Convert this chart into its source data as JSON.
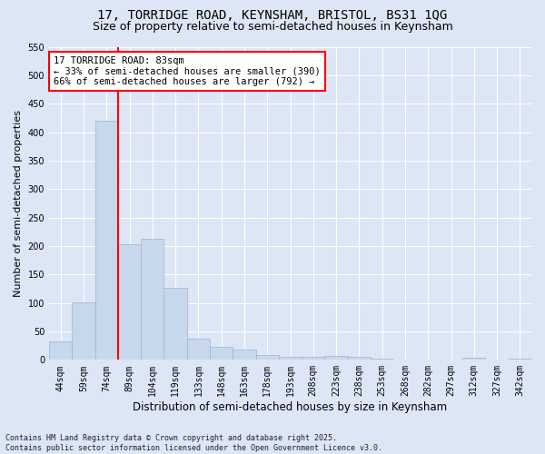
{
  "title_line1": "17, TORRIDGE ROAD, KEYNSHAM, BRISTOL, BS31 1QG",
  "title_line2": "Size of property relative to semi-detached houses in Keynsham",
  "xlabel": "Distribution of semi-detached houses by size in Keynsham",
  "ylabel": "Number of semi-detached properties",
  "categories": [
    "44sqm",
    "59sqm",
    "74sqm",
    "89sqm",
    "104sqm",
    "119sqm",
    "133sqm",
    "148sqm",
    "163sqm",
    "178sqm",
    "193sqm",
    "208sqm",
    "223sqm",
    "238sqm",
    "253sqm",
    "268sqm",
    "282sqm",
    "297sqm",
    "312sqm",
    "327sqm",
    "342sqm"
  ],
  "values": [
    33,
    101,
    420,
    203,
    213,
    127,
    38,
    23,
    18,
    9,
    5,
    6,
    7,
    5,
    2,
    0,
    1,
    0,
    3,
    0,
    2
  ],
  "bar_color": "#c8d8ec",
  "bar_edge_color": "#9ab4d4",
  "vline_x_idx": 2.5,
  "vline_color": "red",
  "annotation_text": "17 TORRIDGE ROAD: 83sqm\n← 33% of semi-detached houses are smaller (390)\n66% of semi-detached houses are larger (792) →",
  "annotation_box_facecolor": "white",
  "annotation_box_edgecolor": "red",
  "ylim": [
    0,
    550
  ],
  "yticks": [
    0,
    50,
    100,
    150,
    200,
    250,
    300,
    350,
    400,
    450,
    500,
    550
  ],
  "background_color": "#dce6f5",
  "plot_background_color": "#dce6f5",
  "grid_color": "white",
  "footnote": "Contains HM Land Registry data © Crown copyright and database right 2025.\nContains public sector information licensed under the Open Government Licence v3.0.",
  "title_fontsize": 10,
  "subtitle_fontsize": 9,
  "tick_fontsize": 7,
  "ylabel_fontsize": 8,
  "xlabel_fontsize": 8.5,
  "annotation_fontsize": 7.5,
  "footnote_fontsize": 6
}
